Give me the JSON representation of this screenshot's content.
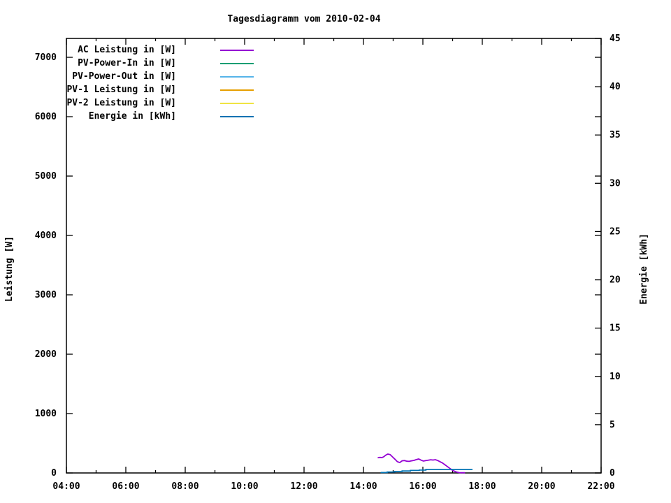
{
  "title": "Tagesdiagramm vom 2010-02-04",
  "chart_data": {
    "type": "line",
    "title": "Tagesdiagramm vom 2010-02-04",
    "grid": false,
    "legend_position": "top-left-inside",
    "x_axis": {
      "unit": "time of day",
      "min": 4,
      "max": 22,
      "major_ticks": [
        4,
        6,
        8,
        10,
        12,
        14,
        16,
        18,
        20,
        22
      ],
      "tick_labels": [
        "04:00",
        "06:00",
        "08:00",
        "10:00",
        "12:00",
        "14:00",
        "16:00",
        "18:00",
        "20:00",
        "22:00"
      ],
      "minor_ticks": [
        5,
        7,
        9,
        11,
        13,
        15,
        17,
        19,
        21
      ]
    },
    "y_left": {
      "label": "Leistung [W]",
      "min": 0,
      "max": 7318,
      "ticks": [
        0,
        1000,
        2000,
        3000,
        4000,
        5000,
        6000,
        7000
      ]
    },
    "y_right": {
      "label": "Energie [kWh]",
      "min": 0,
      "max": 45,
      "ticks": [
        0,
        5,
        10,
        15,
        20,
        25,
        30,
        35,
        40,
        45
      ]
    },
    "series": [
      {
        "name": "AC Leistung in [W]",
        "color": "#9400d3",
        "axis": "left",
        "points": [
          [
            14.48,
            255
          ],
          [
            14.56,
            262
          ],
          [
            14.62,
            258
          ],
          [
            14.68,
            272
          ],
          [
            14.75,
            300
          ],
          [
            14.82,
            318
          ],
          [
            14.9,
            308
          ],
          [
            14.98,
            270
          ],
          [
            15.06,
            232
          ],
          [
            15.14,
            190
          ],
          [
            15.22,
            175
          ],
          [
            15.3,
            205
          ],
          [
            15.38,
            210
          ],
          [
            15.46,
            198
          ],
          [
            15.54,
            195
          ],
          [
            15.62,
            205
          ],
          [
            15.7,
            212
          ],
          [
            15.78,
            225
          ],
          [
            15.86,
            235
          ],
          [
            15.94,
            215
          ],
          [
            16.02,
            200
          ],
          [
            16.1,
            208
          ],
          [
            16.18,
            215
          ],
          [
            16.26,
            222
          ],
          [
            16.34,
            218
          ],
          [
            16.42,
            223
          ],
          [
            16.5,
            210
          ],
          [
            16.58,
            190
          ],
          [
            16.66,
            168
          ],
          [
            16.74,
            140
          ],
          [
            16.82,
            110
          ],
          [
            16.9,
            80
          ],
          [
            16.98,
            52
          ],
          [
            17.06,
            30
          ],
          [
            17.14,
            14
          ],
          [
            17.22,
            6
          ],
          [
            17.3,
            3
          ],
          [
            17.42,
            3
          ]
        ]
      },
      {
        "name": "PV-Power-In in [W]",
        "color": "#009e73",
        "axis": "left",
        "points": []
      },
      {
        "name": "PV-Power-Out in [W]",
        "color": "#56b4e9",
        "axis": "left",
        "points": []
      },
      {
        "name": "PV-1 Leistung in [W]",
        "color": "#e69f00",
        "axis": "left",
        "points": []
      },
      {
        "name": "PV-2 Leistung in [W]",
        "color": "#f0e442",
        "axis": "left",
        "points": []
      },
      {
        "name": "Energie in [kWh]",
        "color": "#0072b2",
        "axis": "right",
        "points": [
          [
            14.58,
            0.04
          ],
          [
            14.8,
            0.04
          ],
          [
            14.8,
            0.1
          ],
          [
            15.05,
            0.1
          ],
          [
            15.05,
            0.15
          ],
          [
            15.3,
            0.15
          ],
          [
            15.3,
            0.2
          ],
          [
            15.58,
            0.2
          ],
          [
            15.58,
            0.26
          ],
          [
            15.88,
            0.26
          ],
          [
            15.88,
            0.3
          ],
          [
            16.1,
            0.3
          ],
          [
            16.1,
            0.36
          ],
          [
            17.67,
            0.36
          ]
        ]
      }
    ]
  }
}
